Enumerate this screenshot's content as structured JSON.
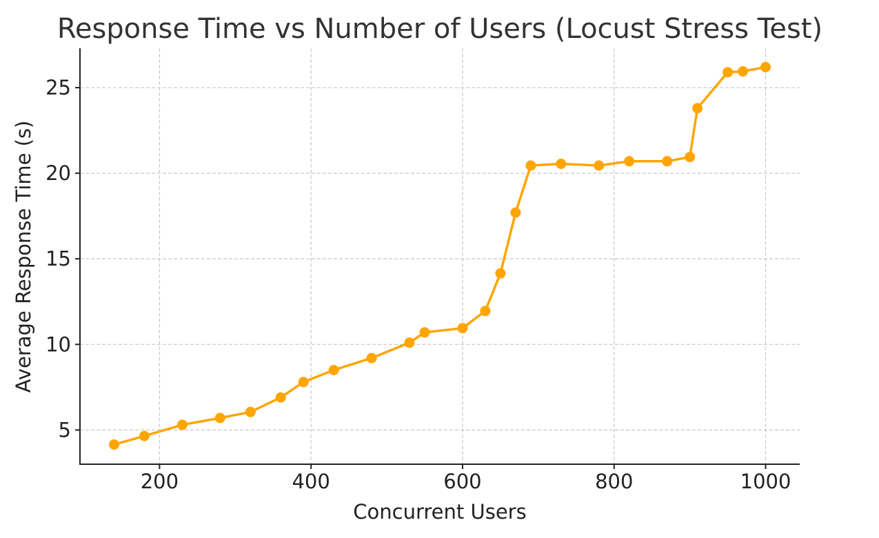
{
  "chart_data": {
    "type": "line",
    "title": "Response Time vs Number of Users (Locust Stress Test)",
    "xlabel": "Concurrent Users",
    "ylabel": "Average Response Time (s)",
    "xlim": [
      95,
      1045
    ],
    "ylim": [
      3.0,
      27.3
    ],
    "xticks": [
      200,
      400,
      600,
      800,
      1000
    ],
    "yticks": [
      5,
      10,
      15,
      20,
      25
    ],
    "grid": true,
    "colors": {
      "series": "#FFA500",
      "grid": "#c8c8c8",
      "axis": "#222222"
    },
    "series": [
      {
        "x": [
          140,
          180,
          230,
          280,
          320,
          360,
          390,
          430,
          480,
          530,
          550,
          600,
          630,
          650,
          670,
          690,
          730,
          780,
          820,
          870,
          900,
          910,
          950,
          970,
          1000
        ],
        "y": [
          4.15,
          4.65,
          5.3,
          5.7,
          6.05,
          6.9,
          7.8,
          8.5,
          9.2,
          10.1,
          10.7,
          10.95,
          11.95,
          14.15,
          17.7,
          20.45,
          20.55,
          20.45,
          20.7,
          20.7,
          20.95,
          23.8,
          25.9,
          25.95,
          26.2
        ]
      }
    ]
  }
}
